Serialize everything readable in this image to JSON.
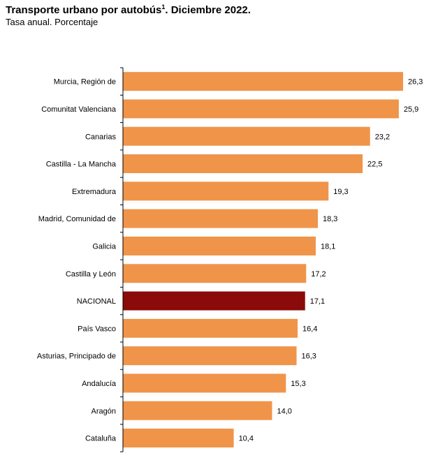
{
  "chart_data": {
    "type": "bar",
    "orientation": "horizontal",
    "title": "Transporte urbano por autobús",
    "title_superscript": "1",
    "title_suffix": ". Diciembre 2022.",
    "subtitle": "Tasa anual. Porcentaje",
    "categories": [
      "Murcia, Región de",
      "Comunitat Valenciana",
      "Canarias",
      "Castilla - La Mancha",
      "Extremadura",
      "Madrid, Comunidad de",
      "Galicia",
      "Castilla y León",
      "NACIONAL",
      "País Vasco",
      "Asturias, Principado de",
      "Andalucía",
      "Aragón",
      "Cataluña"
    ],
    "values": [
      26.3,
      25.9,
      23.2,
      22.5,
      19.3,
      18.3,
      18.1,
      17.2,
      17.1,
      16.4,
      16.3,
      15.3,
      14.0,
      10.4
    ],
    "value_labels": [
      "26,3",
      "25,9",
      "23,2",
      "22,5",
      "19,3",
      "18,3",
      "18,1",
      "17,2",
      "17,1",
      "16,4",
      "16,3",
      "15,3",
      "14,0",
      "10,4"
    ],
    "xlim": [
      0,
      26.3
    ],
    "grid": false,
    "legend": "none",
    "colors": {
      "default": "#F0944A",
      "highlight": "#8B0A0A",
      "highlight_category": "NACIONAL",
      "axis": "#000000"
    }
  }
}
